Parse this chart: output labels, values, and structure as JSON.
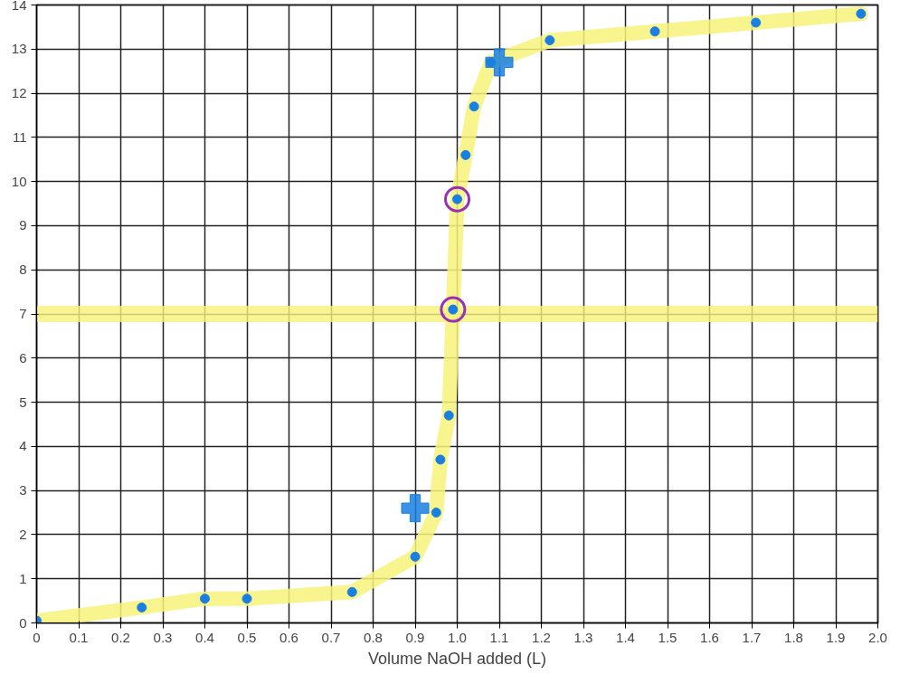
{
  "chart_data": {
    "type": "scatter",
    "xlabel": "Volume NaOH added (L)",
    "xlim": [
      0,
      2
    ],
    "ylim": [
      0,
      14
    ],
    "xticks": [
      0,
      0.1,
      0.2,
      0.3,
      0.4,
      0.5,
      0.6,
      0.7,
      0.8,
      0.9,
      {
        "value": 1,
        "label": "1.0"
      },
      1.1,
      1.2,
      1.3,
      1.4,
      1.5,
      1.6,
      1.7,
      1.8,
      1.9,
      {
        "value": 2,
        "label": "2.0"
      }
    ],
    "yticks": [
      0,
      1,
      2,
      3,
      4,
      5,
      6,
      7,
      8,
      9,
      10,
      11,
      12,
      13,
      14
    ],
    "grid": true,
    "marker": "circle",
    "ref_lines": [
      {
        "axis": "y",
        "value": 7,
        "color": "#f7f27a"
      }
    ],
    "series": [
      {
        "type": "line",
        "marker": "none",
        "color": "#f7f27a",
        "x": [
          0,
          0.25,
          0.4,
          0.5,
          0.75,
          0.9,
          0.95,
          0.96,
          0.98,
          0.99,
          1.0,
          1.02,
          1.04,
          1.08,
          1.22,
          1.47,
          1.71,
          1.96
        ],
        "values": [
          0.05,
          0.35,
          0.55,
          0.55,
          0.7,
          1.5,
          2.5,
          3.7,
          4.7,
          7.1,
          9.6,
          10.6,
          11.7,
          12.7,
          13.2,
          13.4,
          13.6,
          13.8
        ]
      },
      {
        "color": "#1a7fe0",
        "x": [
          0,
          0.25,
          0.4,
          0.5,
          0.75,
          0.9,
          0.95,
          0.96,
          0.98,
          0.99,
          1.0,
          1.02,
          1.04,
          1.08,
          1.22,
          1.47,
          1.71,
          1.96
        ],
        "values": [
          0.05,
          0.35,
          0.55,
          0.55,
          0.7,
          1.5,
          2.5,
          3.7,
          4.7,
          7.1,
          9.6,
          10.6,
          11.7,
          12.7,
          13.2,
          13.4,
          13.6,
          13.8
        ]
      },
      {
        "type": "scatter",
        "marker": "cross",
        "color": "#1a7fe0",
        "x": [
          0.9,
          1.1
        ],
        "values": [
          2.6,
          12.7
        ]
      },
      {
        "type": "scatter",
        "marker": "circle",
        "color": "#9b2fb5",
        "x": [
          0.99,
          1.0
        ],
        "values": [
          7.1,
          9.6
        ]
      }
    ]
  }
}
